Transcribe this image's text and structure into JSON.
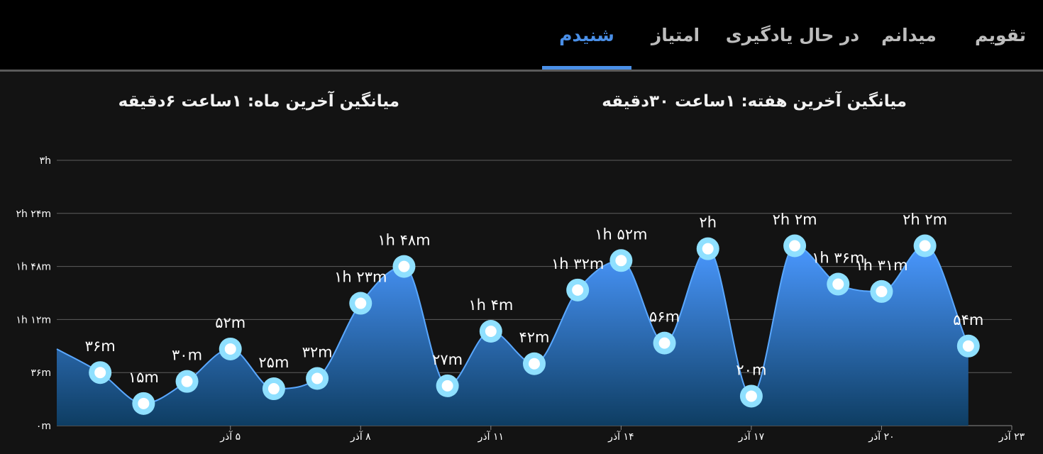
{
  "tabs": [
    {
      "label": "تقویم",
      "active": false
    },
    {
      "label": "میدانم",
      "active": false
    },
    {
      "label": "در حال یادگیری",
      "active": false
    },
    {
      "label": "امتیاز",
      "active": false
    },
    {
      "label": "شنیدم",
      "active": true
    }
  ],
  "stats": {
    "week_label": "میانگین آخرین هفته:",
    "week_value": "۱ساعت   ۳۰دقیقه",
    "month_label": "میانگین آخرین ماه:",
    "month_value": "۱ساعت   ۶دقیقه"
  },
  "colors": {
    "accent": "#4a8fe7",
    "area_top": "#4a98ff",
    "area_bottom": "#0e3d62",
    "point_outer": "#8fe0ff",
    "point_inner": "#ffffff"
  },
  "chart_data": {
    "type": "area",
    "unit": "minutes",
    "ylim": [
      0,
      180
    ],
    "yticks": [
      {
        "value": 0,
        "label": "۰m"
      },
      {
        "value": 36,
        "label": "۳۶m"
      },
      {
        "value": 72,
        "label": "۱h ۱۲m"
      },
      {
        "value": 108,
        "label": "۱h ۴۸m"
      },
      {
        "value": 144,
        "label": "۲h ۲۴m"
      },
      {
        "value": 180,
        "label": "۳h"
      }
    ],
    "xlim": [
      1,
      23
    ],
    "xticks": [
      {
        "x": 5,
        "label": "۵ آذر"
      },
      {
        "x": 8,
        "label": "۸ آذر"
      },
      {
        "x": 11,
        "label": "۱۱ آذر"
      },
      {
        "x": 14,
        "label": "۱۴ آذر"
      },
      {
        "x": 17,
        "label": "۱۷ آذر"
      },
      {
        "x": 20,
        "label": "۲۰ آذر"
      },
      {
        "x": 23,
        "label": "۲۳ آذر"
      }
    ],
    "grid": true,
    "points": [
      {
        "x": 1,
        "y": 52,
        "label": ""
      },
      {
        "x": 2,
        "y": 36,
        "label": "۳۶m"
      },
      {
        "x": 3,
        "y": 15,
        "label": "۱۵m"
      },
      {
        "x": 4,
        "y": 30,
        "label": "۳۰m"
      },
      {
        "x": 5,
        "y": 52,
        "label": "۵۲m"
      },
      {
        "x": 6,
        "y": 25,
        "label": "۲۵m"
      },
      {
        "x": 7,
        "y": 32,
        "label": "۳۲m"
      },
      {
        "x": 8,
        "y": 83,
        "label": "۱h ۲۳m"
      },
      {
        "x": 9,
        "y": 108,
        "label": "۱h ۴۸m"
      },
      {
        "x": 10,
        "y": 27,
        "label": "۲۷m"
      },
      {
        "x": 11,
        "y": 64,
        "label": "۱h ۴m"
      },
      {
        "x": 12,
        "y": 42,
        "label": "۴۲m"
      },
      {
        "x": 13,
        "y": 92,
        "label": "۱h ۳۲m"
      },
      {
        "x": 14,
        "y": 112,
        "label": "۱h ۵۲m"
      },
      {
        "x": 15,
        "y": 56,
        "label": "۵۶m"
      },
      {
        "x": 16,
        "y": 120,
        "label": "۲h"
      },
      {
        "x": 17,
        "y": 20,
        "label": "۲۰m"
      },
      {
        "x": 18,
        "y": 122,
        "label": "۲h ۲m"
      },
      {
        "x": 19,
        "y": 96,
        "label": "۱h ۳۶m"
      },
      {
        "x": 20,
        "y": 91,
        "label": "۱h ۳۱m"
      },
      {
        "x": 21,
        "y": 122,
        "label": "۲h ۲m"
      },
      {
        "x": 22,
        "y": 54,
        "label": "۵۴m"
      }
    ]
  }
}
